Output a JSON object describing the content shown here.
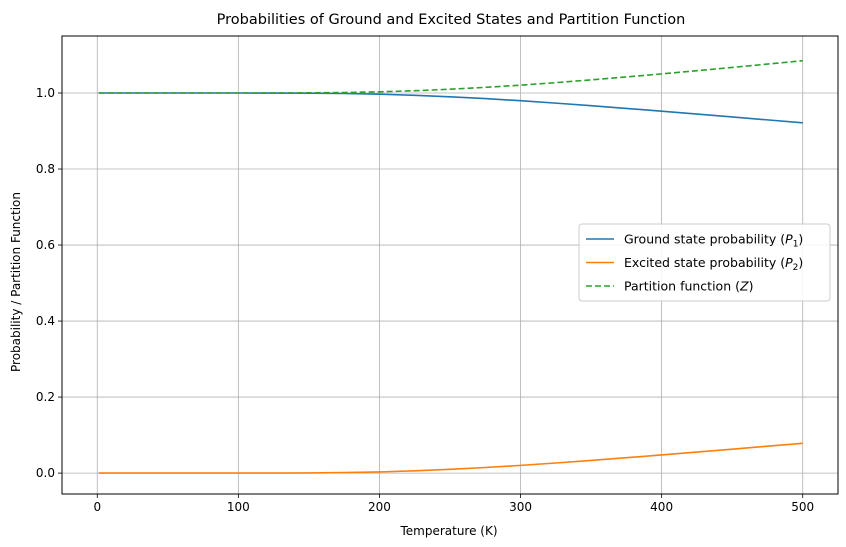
{
  "chart_data": {
    "type": "line",
    "title": "Probabilities of Ground and Excited States and Partition Function",
    "xlabel": "Temperature (K)",
    "ylabel": "Probability / Partition Function",
    "xlim": [
      -25,
      525
    ],
    "ylim": [
      -0.055,
      1.15
    ],
    "xticks": [
      0,
      100,
      200,
      300,
      400,
      500
    ],
    "yticks": [
      0.0,
      0.2,
      0.4,
      0.6,
      0.8,
      1.0
    ],
    "xtick_labels": [
      "0",
      "100",
      "200",
      "300",
      "400",
      "500"
    ],
    "ytick_labels": [
      "0.0",
      "0.2",
      "0.4",
      "0.6",
      "0.8",
      "1.0"
    ],
    "grid": true,
    "legend_position": "center-right",
    "x": [
      1,
      25,
      50,
      75,
      100,
      125,
      150,
      175,
      200,
      225,
      250,
      275,
      300,
      325,
      350,
      375,
      400,
      425,
      450,
      475,
      500
    ],
    "series": [
      {
        "name": "Ground state probability (P1)",
        "legend_main": "Ground state probability (",
        "legend_sym": "P",
        "legend_sub": "1",
        "legend_end": ")",
        "color": "#1f77b4",
        "style": "solid",
        "values": [
          1.0,
          1.0,
          1.0,
          1.0,
          1.0,
          0.9999,
          0.9995,
          0.9987,
          0.9969,
          0.994,
          0.9901,
          0.9853,
          0.9797,
          0.9734,
          0.9666,
          0.9595,
          0.9521,
          0.9446,
          0.937,
          0.9293,
          0.9217
        ]
      },
      {
        "name": "Excited state probability (P2)",
        "legend_main": "Excited state probability (",
        "legend_sym": "P",
        "legend_sub": "2",
        "legend_end": ")",
        "color": "#ff7f0e",
        "style": "solid",
        "values": [
          0.0,
          0.0,
          0.0,
          0.0,
          0.0,
          0.0001,
          0.0005,
          0.0013,
          0.0031,
          0.006,
          0.0099,
          0.0147,
          0.0203,
          0.0266,
          0.0334,
          0.0405,
          0.0479,
          0.0554,
          0.063,
          0.0707,
          0.0783
        ]
      },
      {
        "name": "Partition function (Z)",
        "legend_main": "Partition function (",
        "legend_sym": "Z",
        "legend_sub": "",
        "legend_end": ")",
        "color": "#2ca02c",
        "style": "dashed",
        "values": [
          1.0,
          1.0,
          1.0,
          1.0,
          1.0,
          1.0001,
          1.0005,
          1.0013,
          1.0031,
          1.006,
          1.01,
          1.0149,
          1.0207,
          1.0273,
          1.0346,
          1.0422,
          1.0503,
          1.0587,
          1.0673,
          1.0761,
          1.085
        ]
      }
    ]
  }
}
